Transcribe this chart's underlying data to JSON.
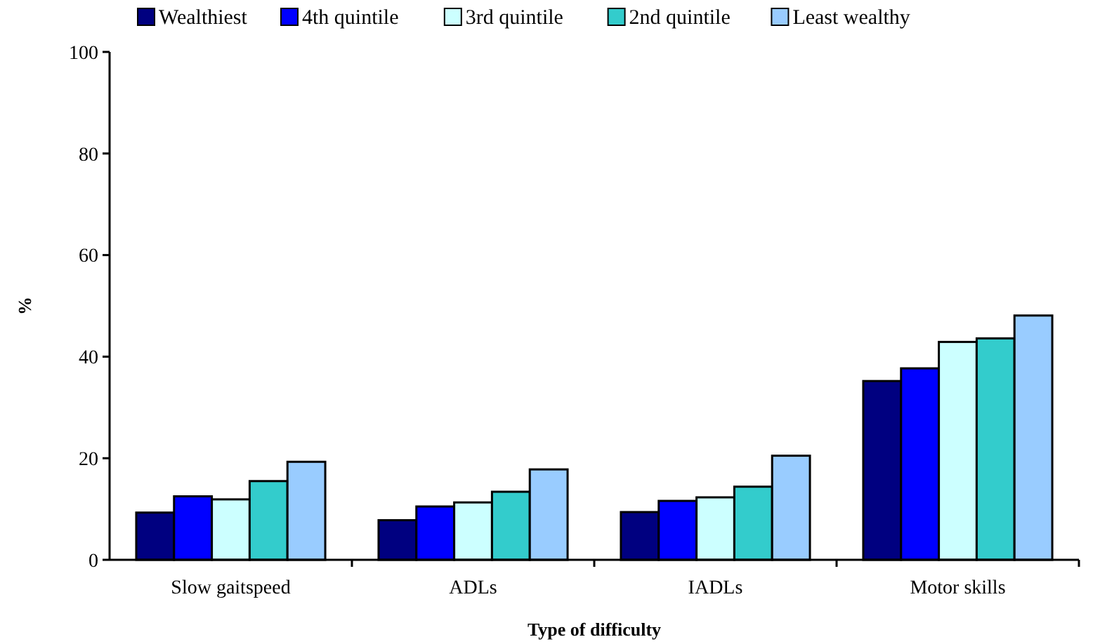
{
  "chart_data": {
    "type": "bar",
    "xlabel": "Type of difficulty",
    "ylabel": "%",
    "categories": [
      "Slow gaitspeed",
      "ADLs",
      "IADLs",
      "Motor skills"
    ],
    "series": [
      {
        "name": "Wealthiest",
        "color": "#000080",
        "values": [
          9.3,
          7.8,
          9.4,
          35.2
        ]
      },
      {
        "name": "4th quintile",
        "color": "#0000ff",
        "values": [
          12.5,
          10.5,
          11.6,
          37.7
        ]
      },
      {
        "name": "3rd quintile",
        "color": "#ccffff",
        "values": [
          11.9,
          11.3,
          12.3,
          42.9
        ]
      },
      {
        "name": "2nd quintile",
        "color": "#33cccc",
        "values": [
          15.5,
          13.4,
          14.4,
          43.6
        ]
      },
      {
        "name": "Least wealthy",
        "color": "#99ccff",
        "values": [
          19.3,
          17.8,
          20.5,
          48.1
        ]
      }
    ],
    "ylim": [
      0,
      100
    ],
    "yticks": [
      0,
      20,
      40,
      60,
      80,
      100
    ],
    "grid": false,
    "legend": "top"
  }
}
